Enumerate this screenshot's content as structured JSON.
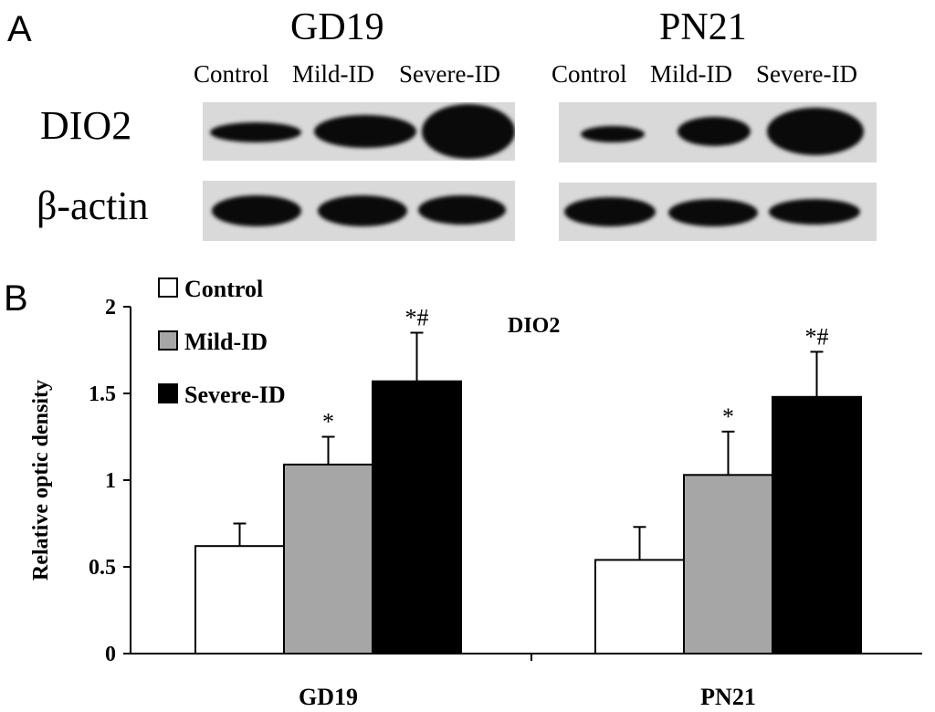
{
  "panel_a": {
    "letter": "A",
    "blots": [
      {
        "title": "GD19",
        "lanes": [
          "Control",
          "Mild-ID",
          "Severe-ID"
        ],
        "dio2_intensity": [
          0.35,
          0.7,
          1.0
        ],
        "actin_intensity": [
          0.85,
          0.85,
          0.8
        ]
      },
      {
        "title": "PN21",
        "lanes": [
          "Control",
          "Mild-ID",
          "Severe-ID"
        ],
        "dio2_intensity": [
          0.3,
          0.6,
          0.95
        ],
        "actin_intensity": [
          0.8,
          0.75,
          0.7
        ]
      }
    ],
    "row_labels": [
      "DIO2",
      "β-actin"
    ]
  },
  "panel_b": {
    "letter": "B"
  },
  "chart_data": {
    "type": "bar",
    "title": "DIO2",
    "ylabel": "Relative optic density",
    "xlabel": "",
    "ylim": [
      0,
      2
    ],
    "yticks": [
      "0",
      "0.5",
      "1",
      "1.5",
      "2"
    ],
    "categories": [
      "GD19",
      "PN21"
    ],
    "grid": false,
    "legend_position": "top-left",
    "series": [
      {
        "name": "Control",
        "color": "#ffffff",
        "values": [
          0.62,
          0.54
        ],
        "errors": [
          0.13,
          0.19
        ],
        "marks": [
          "",
          ""
        ]
      },
      {
        "name": "Mild-ID",
        "color": "#a6a6a6",
        "values": [
          1.09,
          1.03
        ],
        "errors": [
          0.16,
          0.25
        ],
        "marks": [
          "*",
          "*"
        ]
      },
      {
        "name": "Severe-ID",
        "color": "#000000",
        "values": [
          1.57,
          1.48
        ],
        "errors": [
          0.28,
          0.26
        ],
        "marks": [
          "*#",
          "*#"
        ]
      }
    ]
  }
}
